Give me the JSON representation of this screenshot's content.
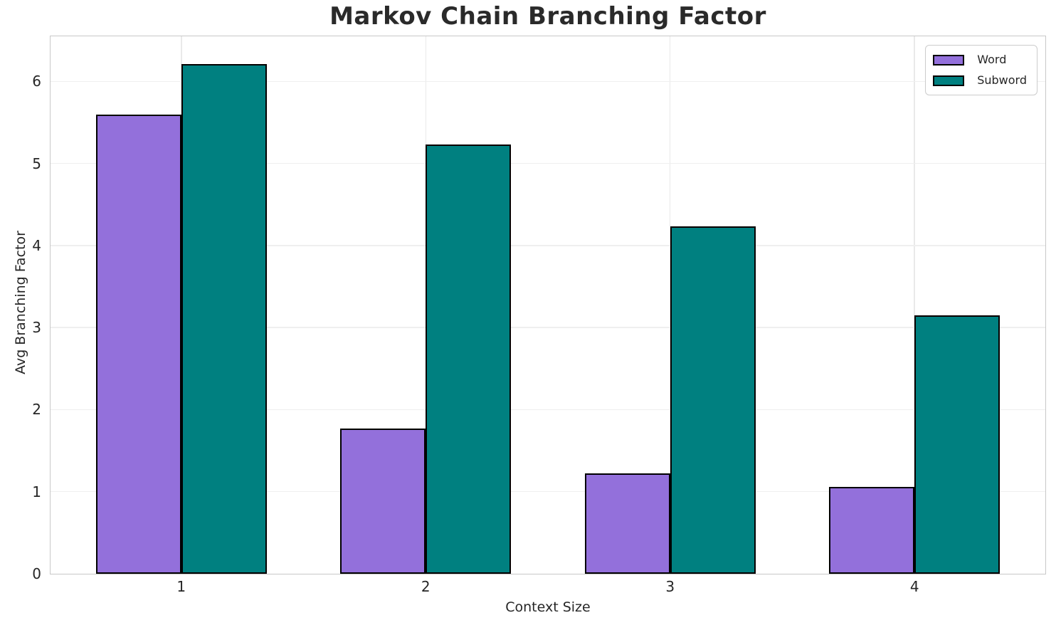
{
  "chart_data": {
    "type": "bar",
    "title": "Markov Chain Branching Factor",
    "xlabel": "Context Size",
    "ylabel": "Avg Branching Factor",
    "categories": [
      1,
      2,
      3,
      4
    ],
    "series": [
      {
        "name": "Word",
        "color": "#9370DB",
        "values": [
          5.6,
          1.77,
          1.22,
          1.06
        ]
      },
      {
        "name": "Subword",
        "color": "#008080",
        "values": [
          6.21,
          5.23,
          4.23,
          3.15
        ]
      }
    ],
    "bar_width": 0.35,
    "bar_edge_color": "#000000",
    "xlim": [
      0.465,
      4.535
    ],
    "ylim": [
      0,
      6.55
    ],
    "yticks": [
      0,
      1,
      2,
      3,
      4,
      5,
      6
    ],
    "grid": true,
    "grid_color": "#e9e9e9",
    "spine_color": "#c8c8c8",
    "text_color": "#262626",
    "legend_position": "upper right"
  }
}
